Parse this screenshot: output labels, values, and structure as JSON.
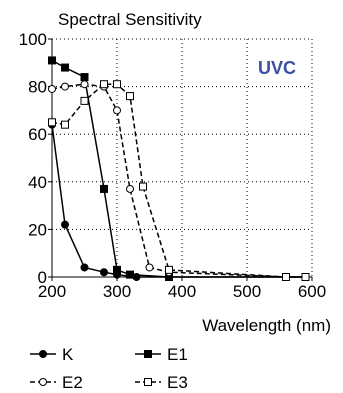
{
  "colors": {
    "background": "#ffffff",
    "axis": "#000000",
    "grid": "#000000",
    "series": "#000000",
    "badge": "#3a50a0"
  },
  "badge": "UVC",
  "chart_data": {
    "type": "line",
    "title": "Spectral Sensitivity",
    "xlabel": "Wavelength (nm)",
    "ylabel": "",
    "xlim": [
      200,
      600
    ],
    "ylim": [
      0,
      100
    ],
    "xticks": [
      200,
      300,
      400,
      500,
      600
    ],
    "yticks": [
      0,
      20,
      40,
      60,
      80,
      100
    ],
    "grid": true,
    "grid_style": "dotted",
    "legend_position": "bottom",
    "series": [
      {
        "name": "K",
        "marker": "filled-circle",
        "line": "solid",
        "points": [
          [
            200,
            64
          ],
          [
            220,
            22
          ],
          [
            250,
            4
          ],
          [
            280,
            2
          ],
          [
            300,
            1
          ],
          [
            330,
            0
          ],
          [
            380,
            0
          ],
          [
            560,
            0
          ],
          [
            590,
            0
          ]
        ]
      },
      {
        "name": "E1",
        "marker": "filled-square",
        "line": "solid",
        "points": [
          [
            200,
            91
          ],
          [
            220,
            88
          ],
          [
            250,
            84
          ],
          [
            280,
            37
          ],
          [
            300,
            3
          ],
          [
            320,
            1
          ],
          [
            380,
            0
          ],
          [
            560,
            0
          ],
          [
            590,
            0
          ]
        ]
      },
      {
        "name": "E2",
        "marker": "open-circle",
        "line": "dashed",
        "points": [
          [
            200,
            79
          ],
          [
            220,
            80
          ],
          [
            250,
            81
          ],
          [
            280,
            80
          ],
          [
            300,
            70
          ],
          [
            320,
            37
          ],
          [
            350,
            4
          ],
          [
            380,
            2
          ],
          [
            560,
            0
          ],
          [
            590,
            0
          ]
        ]
      },
      {
        "name": "E3",
        "marker": "open-square",
        "line": "dashed",
        "points": [
          [
            200,
            65
          ],
          [
            220,
            64
          ],
          [
            250,
            74
          ],
          [
            280,
            81
          ],
          [
            300,
            81
          ],
          [
            320,
            76
          ],
          [
            340,
            38
          ],
          [
            380,
            3
          ],
          [
            560,
            0
          ],
          [
            590,
            0
          ]
        ]
      }
    ]
  }
}
